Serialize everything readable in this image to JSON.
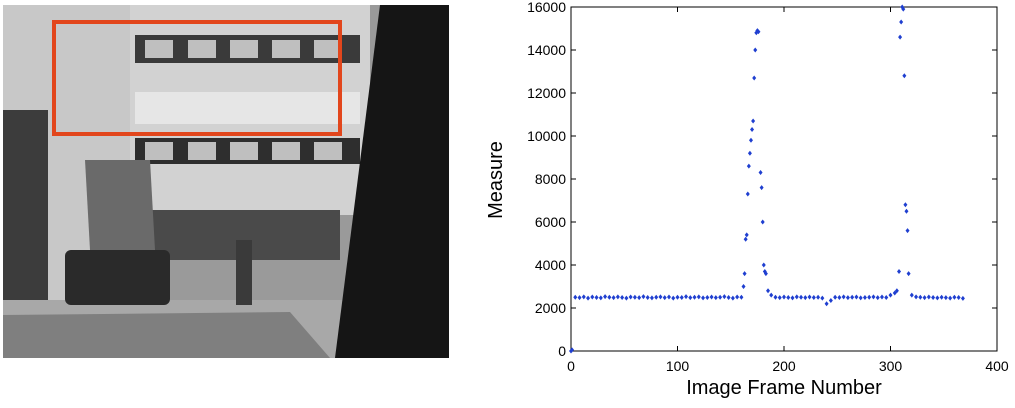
{
  "chart_data": {
    "type": "scatter",
    "x_label": "Image Frame Number",
    "y_label": "Measure",
    "color": "#1f3fd0",
    "xlim": [
      0,
      400
    ],
    "ylim": [
      0,
      16000
    ],
    "xticks": [
      0,
      100,
      200,
      300,
      400
    ],
    "yticks": [
      0,
      2000,
      4000,
      6000,
      8000,
      10000,
      12000,
      14000,
      16000
    ],
    "x": [
      0,
      1,
      4,
      8,
      12,
      16,
      20,
      24,
      28,
      32,
      36,
      40,
      44,
      48,
      52,
      56,
      60,
      64,
      68,
      72,
      76,
      80,
      84,
      88,
      92,
      96,
      100,
      104,
      108,
      112,
      116,
      120,
      124,
      128,
      132,
      136,
      140,
      144,
      148,
      152,
      156,
      160,
      162,
      163,
      164,
      165,
      166,
      167,
      168,
      169,
      170,
      171,
      172,
      173,
      174,
      175,
      176,
      178,
      179,
      180,
      181,
      182,
      183,
      185,
      188,
      192,
      196,
      200,
      204,
      208,
      212,
      216,
      220,
      224,
      228,
      232,
      236,
      240,
      244,
      248,
      252,
      256,
      260,
      264,
      268,
      272,
      276,
      280,
      284,
      288,
      292,
      296,
      300,
      304,
      306,
      308,
      309,
      310,
      311,
      312,
      313,
      314,
      315,
      316,
      317,
      320,
      324,
      328,
      332,
      336,
      340,
      344,
      348,
      352,
      356,
      360,
      364,
      368
    ],
    "values": [
      0,
      50,
      2500,
      2480,
      2520,
      2460,
      2510,
      2490,
      2470,
      2530,
      2500,
      2480,
      2520,
      2490,
      2460,
      2510,
      2500,
      2480,
      2530,
      2490,
      2470,
      2500,
      2520,
      2480,
      2510,
      2460,
      2500,
      2490,
      2530,
      2480,
      2500,
      2520,
      2470,
      2490,
      2510,
      2480,
      2500,
      2530,
      2490,
      2460,
      2510,
      2500,
      3000,
      3600,
      5200,
      5400,
      7300,
      8600,
      9200,
      9800,
      10300,
      10700,
      12700,
      14000,
      14800,
      14900,
      14850,
      8300,
      7600,
      6000,
      4000,
      3700,
      3600,
      2800,
      2600,
      2500,
      2480,
      2510,
      2490,
      2470,
      2520,
      2500,
      2480,
      2510,
      2490,
      2500,
      2460,
      2200,
      2350,
      2500,
      2490,
      2520,
      2480,
      2500,
      2510,
      2470,
      2490,
      2500,
      2520,
      2480,
      2510,
      2490,
      2600,
      2700,
      2800,
      3700,
      14600,
      15300,
      16000,
      15900,
      12800,
      6800,
      6500,
      5600,
      3600,
      2600,
      2520,
      2500,
      2480,
      2510,
      2490,
      2470,
      2500,
      2480,
      2460,
      2500,
      2490,
      2450
    ]
  }
}
